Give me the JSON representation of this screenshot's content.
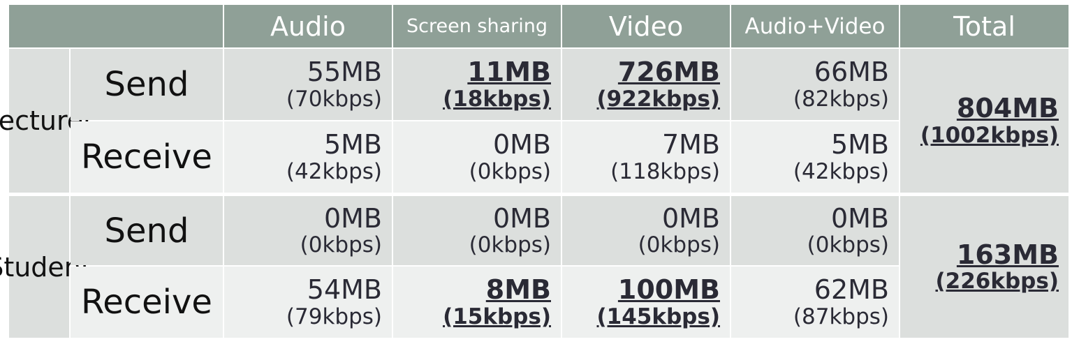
{
  "header": {
    "columns": [
      "Audio",
      "Screen sharing",
      "Video",
      "Audio+Video",
      "Total"
    ]
  },
  "colors": {
    "header_bg": "#8fa097",
    "row_dark": "#dcdfdd",
    "row_light": "#eef0ef"
  },
  "groups": [
    {
      "label": "Lecturer",
      "rows": [
        {
          "label": "Send",
          "cells": [
            {
              "mb": "55MB",
              "kbps": "(70kbps)"
            },
            {
              "mb": "11MB",
              "kbps": "(18kbps)",
              "emphasis": true
            },
            {
              "mb": "726MB",
              "kbps": "(922kbps)",
              "emphasis": true
            },
            {
              "mb": "66MB",
              "kbps": "(82kbps)"
            }
          ]
        },
        {
          "label": "Receive",
          "cells": [
            {
              "mb": "5MB",
              "kbps": "(42kbps)"
            },
            {
              "mb": "0MB",
              "kbps": "(0kbps)"
            },
            {
              "mb": "7MB",
              "kbps": "(118kbps)"
            },
            {
              "mb": "5MB",
              "kbps": "(42kbps)"
            }
          ]
        }
      ],
      "total": {
        "mb": "804MB",
        "kbps": "(1002kbps)"
      }
    },
    {
      "label": "Student",
      "rows": [
        {
          "label": "Send",
          "cells": [
            {
              "mb": "0MB",
              "kbps": "(0kbps)"
            },
            {
              "mb": "0MB",
              "kbps": "(0kbps)"
            },
            {
              "mb": "0MB",
              "kbps": "(0kbps)"
            },
            {
              "mb": "0MB",
              "kbps": "(0kbps)"
            }
          ]
        },
        {
          "label": "Receive",
          "cells": [
            {
              "mb": "54MB",
              "kbps": "(79kbps)"
            },
            {
              "mb": "8MB",
              "kbps": "(15kbps)",
              "emphasis": true
            },
            {
              "mb": "100MB",
              "kbps": "(145kbps)",
              "emphasis": true
            },
            {
              "mb": "62MB",
              "kbps": "(87kbps)"
            }
          ]
        }
      ],
      "total": {
        "mb": "163MB",
        "kbps": "(226kbps)"
      }
    }
  ]
}
